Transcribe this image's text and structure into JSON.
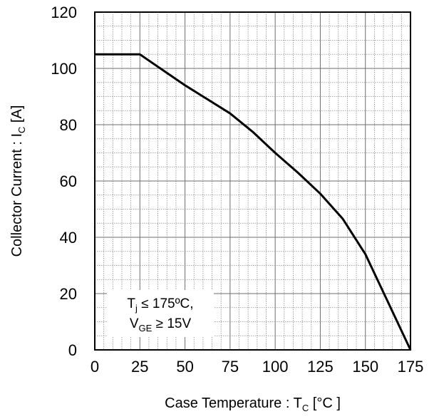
{
  "chart_data": {
    "type": "line",
    "xlabel": {
      "main": "Case Temperature : T",
      "sub": "C",
      "tail": " [°C ]"
    },
    "ylabel": {
      "main": "Collector Current : I",
      "sub": "C",
      "tail": " [A]"
    },
    "xlim": [
      0,
      175
    ],
    "ylim": [
      0,
      120
    ],
    "xticks": [
      0,
      25,
      50,
      75,
      100,
      125,
      150,
      175
    ],
    "yticks": [
      0,
      20,
      40,
      60,
      80,
      100,
      120
    ],
    "x_minor_divisions": 5,
    "y_minor_divisions": 4,
    "grid": true,
    "series": [
      {
        "x": [
          0,
          25,
          37.5,
          50,
          62.5,
          75,
          87.5,
          100,
          112.5,
          125,
          137.5,
          150,
          162.5,
          175
        ],
        "y": [
          105,
          105,
          99.5,
          94,
          89,
          84,
          77.5,
          70,
          63,
          55.5,
          46.5,
          34,
          17,
          0
        ],
        "color": "#000000"
      }
    ],
    "annotation": {
      "line1": {
        "main": "T",
        "sub": "j",
        "tail": " ≤ 175ºC,"
      },
      "line2": {
        "main": "V",
        "sub": "GE",
        "tail": " ≥ 15V"
      }
    }
  }
}
